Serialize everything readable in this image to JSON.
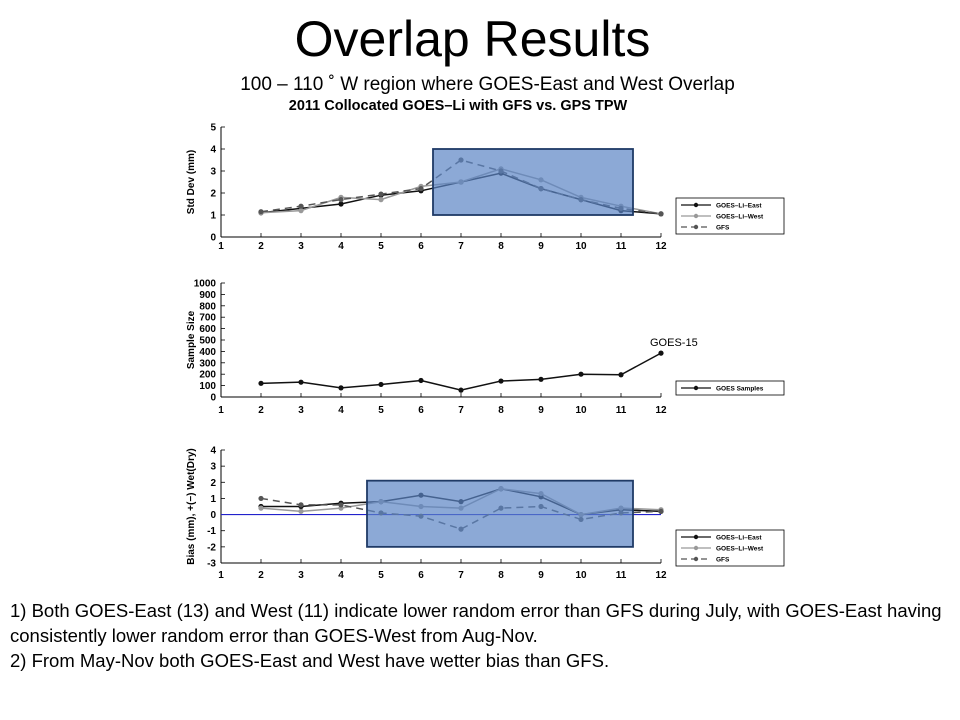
{
  "slide": {
    "title": "Overlap Results",
    "subtitle": "100 – 110 ˚ W region where GOES-East and West Overlap"
  },
  "figure": {
    "title": "2011 Collocated GOES–Li with GFS vs. GPS TPW"
  },
  "annotation": "GOES-15",
  "notes": [
    "1) Both GOES-East (13) and West (11) indicate lower random error than GFS during July, with GOES-East having consistently lower random error than GOES-West from Aug-Nov.",
    "2) From May-Nov both GOES-East and West have wetter bias than GFS."
  ],
  "chart_data": [
    {
      "type": "line",
      "ylabel": "Std Dev (mm)",
      "xlim": [
        1,
        12
      ],
      "ylim": [
        0,
        5
      ],
      "x_ticks": [
        1,
        2,
        3,
        4,
        5,
        6,
        7,
        8,
        9,
        10,
        11,
        12
      ],
      "y_ticks": [
        0,
        1,
        2,
        3,
        4,
        5
      ],
      "x": [
        2,
        3,
        4,
        5,
        6,
        7,
        8,
        9,
        10,
        11,
        12
      ],
      "series": [
        {
          "name": "GOES–Li–East",
          "color": "#111111",
          "style": "solid",
          "values": [
            1.1,
            1.3,
            1.5,
            1.9,
            2.1,
            2.5,
            2.9,
            2.2,
            1.7,
            1.2,
            1.05
          ]
        },
        {
          "name": "GOES–Li–West",
          "color": "#999999",
          "style": "solid",
          "values": [
            1.1,
            1.2,
            1.8,
            1.7,
            2.3,
            2.5,
            3.1,
            2.6,
            1.8,
            1.4,
            1.05
          ]
        },
        {
          "name": "GFS",
          "color": "#555555",
          "style": "dashed",
          "values": [
            1.15,
            1.4,
            1.7,
            1.95,
            2.2,
            3.5,
            3.0,
            2.2,
            1.7,
            1.3,
            1.05
          ]
        }
      ],
      "highlight_x": [
        6.3,
        11.3
      ],
      "highlight_y": [
        1.0,
        4.0
      ]
    },
    {
      "type": "line",
      "ylabel": "Sample Size",
      "xlim": [
        1,
        12
      ],
      "ylim": [
        0,
        1000
      ],
      "x_ticks": [
        1,
        2,
        3,
        4,
        5,
        6,
        7,
        8,
        9,
        10,
        11,
        12
      ],
      "y_ticks": [
        0,
        100,
        200,
        300,
        400,
        500,
        600,
        700,
        800,
        900,
        1000
      ],
      "x": [
        2,
        3,
        4,
        5,
        6,
        7,
        8,
        9,
        10,
        11,
        12
      ],
      "series": [
        {
          "name": "GOES Samples",
          "color": "#111111",
          "style": "solid",
          "values": [
            120,
            130,
            80,
            110,
            145,
            60,
            140,
            155,
            200,
            195,
            385
          ]
        }
      ]
    },
    {
      "type": "line",
      "ylabel": "Bias (mm), +(−) Wet(Dry)",
      "xlim": [
        1,
        12
      ],
      "ylim": [
        -3,
        4
      ],
      "x_ticks": [
        1,
        2,
        3,
        4,
        5,
        6,
        7,
        8,
        9,
        10,
        11,
        12
      ],
      "y_ticks": [
        -3,
        -2,
        -1,
        0,
        1,
        2,
        3,
        4
      ],
      "x": [
        2,
        3,
        4,
        5,
        6,
        7,
        8,
        9,
        10,
        11,
        12
      ],
      "zero_line_color": "#2222cc",
      "series": [
        {
          "name": "GOES–Li–East",
          "color": "#111111",
          "style": "solid",
          "values": [
            0.5,
            0.5,
            0.7,
            0.8,
            1.2,
            0.8,
            1.6,
            1.1,
            0.0,
            0.3,
            0.2
          ]
        },
        {
          "name": "GOES–Li–West",
          "color": "#999999",
          "style": "solid",
          "values": [
            0.4,
            0.2,
            0.4,
            0.8,
            0.5,
            0.4,
            1.6,
            1.3,
            0.0,
            0.4,
            0.3
          ]
        },
        {
          "name": "GFS",
          "color": "#555555",
          "style": "dashed",
          "values": [
            1.0,
            0.6,
            0.6,
            0.1,
            -0.1,
            -0.9,
            0.4,
            0.5,
            -0.3,
            0.1,
            0.2
          ]
        }
      ],
      "highlight_x": [
        4.65,
        11.3
      ],
      "highlight_y": [
        -2.0,
        2.1
      ]
    }
  ]
}
